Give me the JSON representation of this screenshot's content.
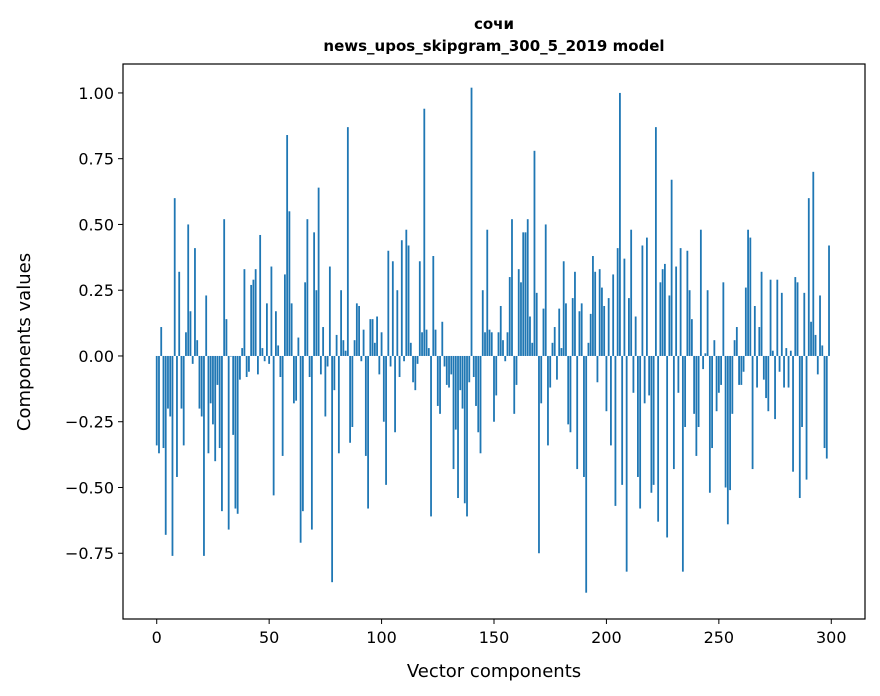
{
  "chart_data": {
    "type": "bar",
    "title_line1": "сочи",
    "title_line2": "news_upos_skipgram_300_5_2019 model",
    "xlabel": "Vector components",
    "ylabel": "Components values",
    "xlim": [
      -15,
      315
    ],
    "ylim": [
      -1.0,
      1.11
    ],
    "xticks": [
      0,
      50,
      100,
      150,
      200,
      250,
      300
    ],
    "xtick_labels": [
      "0",
      "50",
      "100",
      "150",
      "200",
      "250",
      "300"
    ],
    "yticks": [
      -0.75,
      -0.5,
      -0.25,
      0.0,
      0.25,
      0.5,
      0.75,
      1.0
    ],
    "ytick_labels": [
      "−0.75",
      "−0.50",
      "−0.25",
      "0.00",
      "0.25",
      "0.50",
      "0.75",
      "1.00"
    ],
    "bar_color": "#1f77b4",
    "values": [
      -0.34,
      -0.37,
      0.11,
      -0.35,
      -0.68,
      -0.2,
      -0.23,
      -0.76,
      0.6,
      -0.46,
      0.32,
      -0.2,
      -0.34,
      0.09,
      0.5,
      0.17,
      -0.03,
      0.41,
      0.06,
      -0.2,
      -0.23,
      -0.76,
      0.23,
      -0.37,
      -0.18,
      -0.26,
      -0.4,
      -0.11,
      -0.35,
      -0.59,
      0.52,
      0.14,
      -0.66,
      0.0,
      -0.3,
      -0.58,
      -0.6,
      -0.09,
      0.03,
      0.33,
      -0.08,
      -0.06,
      0.27,
      0.29,
      0.33,
      -0.07,
      0.46,
      0.03,
      -0.02,
      0.2,
      -0.03,
      0.34,
      -0.53,
      0.17,
      0.04,
      -0.08,
      -0.38,
      0.31,
      0.84,
      0.55,
      0.2,
      -0.18,
      -0.17,
      0.07,
      -0.71,
      -0.59,
      0.28,
      0.52,
      -0.08,
      -0.66,
      0.47,
      0.25,
      0.64,
      -0.07,
      0.11,
      -0.23,
      -0.04,
      0.34,
      -0.86,
      -0.13,
      0.08,
      -0.37,
      0.25,
      0.06,
      0.02,
      0.87,
      -0.33,
      -0.27,
      0.06,
      0.2,
      0.19,
      -0.02,
      0.1,
      -0.38,
      -0.58,
      0.14,
      0.14,
      0.05,
      0.15,
      -0.07,
      0.09,
      -0.25,
      -0.49,
      0.4,
      -0.04,
      0.36,
      -0.29,
      0.25,
      -0.08,
      0.44,
      -0.02,
      0.48,
      0.42,
      0.05,
      -0.1,
      -0.13,
      -0.03,
      0.36,
      0.09,
      0.94,
      0.1,
      0.03,
      -0.61,
      0.38,
      0.1,
      -0.19,
      -0.22,
      0.13,
      -0.04,
      -0.11,
      -0.12,
      -0.07,
      -0.43,
      -0.28,
      -0.54,
      -0.13,
      -0.2,
      -0.56,
      -0.61,
      -0.1,
      1.02,
      -0.08,
      -0.19,
      -0.29,
      -0.37,
      0.25,
      0.09,
      0.48,
      0.1,
      0.09,
      -0.25,
      -0.15,
      0.09,
      0.19,
      0.06,
      -0.02,
      0.09,
      0.3,
      0.52,
      -0.22,
      -0.11,
      0.33,
      0.28,
      0.47,
      0.47,
      0.52,
      0.15,
      0.05,
      0.78,
      0.24,
      -0.75,
      -0.18,
      0.18,
      0.5,
      -0.34,
      -0.12,
      0.05,
      0.11,
      -0.09,
      0.18,
      0.03,
      0.36,
      0.2,
      -0.26,
      -0.29,
      0.22,
      0.32,
      -0.43,
      0.17,
      0.2,
      -0.46,
      -0.9,
      0.05,
      0.16,
      0.38,
      0.32,
      -0.1,
      0.33,
      0.26,
      0.19,
      -0.21,
      0.22,
      -0.34,
      0.31,
      -0.57,
      0.41,
      1.0,
      -0.49,
      0.37,
      -0.82,
      0.22,
      0.48,
      -0.14,
      0.15,
      -0.46,
      -0.58,
      0.42,
      -0.18,
      0.45,
      -0.15,
      -0.52,
      -0.49,
      0.87,
      -0.63,
      0.28,
      0.33,
      0.35,
      -0.69,
      0.23,
      0.67,
      -0.43,
      0.34,
      -0.14,
      0.41,
      -0.82,
      -0.27,
      0.4,
      0.25,
      0.14,
      -0.22,
      -0.38,
      -0.27,
      0.48,
      -0.05,
      0.01,
      0.25,
      -0.52,
      -0.35,
      0.06,
      -0.21,
      -0.14,
      -0.11,
      0.28,
      -0.5,
      -0.64,
      -0.51,
      -0.22,
      0.06,
      0.11,
      -0.11,
      -0.11,
      -0.06,
      0.26,
      0.48,
      0.45,
      -0.43,
      0.19,
      -0.12,
      0.11,
      0.32,
      -0.09,
      -0.16,
      -0.21,
      0.29,
      0.02,
      -0.24,
      0.29,
      -0.06,
      0.24,
      -0.12,
      0.03,
      -0.12,
      0.02,
      -0.44,
      0.3,
      0.28,
      -0.54,
      -0.27,
      0.24,
      -0.47,
      0.6,
      0.13,
      0.7,
      0.08,
      -0.07,
      0.23,
      0.04,
      -0.35,
      -0.39,
      0.42
    ]
  }
}
